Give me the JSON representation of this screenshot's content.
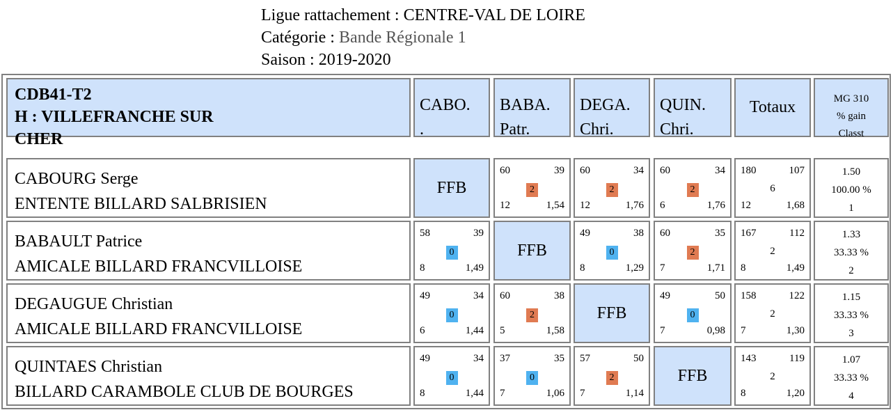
{
  "header": {
    "ligue_label": "Ligue rattachement : ",
    "ligue_value": "CENTRE-VAL DE LOIRE",
    "categorie_label": "Catégorie : ",
    "categorie_value": "Bande Régionale 1",
    "saison_label": "Saison : ",
    "saison_value": "2019-2020"
  },
  "team": {
    "line1": "CDB41-T2",
    "line2": "H : VILLEFRANCHE SUR",
    "line3": "CHER"
  },
  "columns": [
    {
      "l1": "CABO.",
      "l2": "."
    },
    {
      "l1": "BABA.",
      "l2": "Patr."
    },
    {
      "l1": "DEGA.",
      "l2": "Chri."
    },
    {
      "l1": "QUIN.",
      "l2": "Chri."
    }
  ],
  "totaux_label": "Totaux",
  "mg_header": {
    "l1": "MG 310",
    "l2": "% gain",
    "l3": "Classt"
  },
  "ffb_label": "FFB",
  "colors": {
    "header_blue": "#cfe2fb",
    "win_badge": "#e07b52",
    "loss_badge": "#4fb2f0",
    "border": "#808080"
  },
  "rows": [
    {
      "name": "CABOURG Serge",
      "club": "ENTENTE BILLARD SALBRISIEN",
      "matches": [
        null,
        {
          "pts": "60",
          "rep": "39",
          "score": "2",
          "serie": "12",
          "moy": "1,54",
          "result": "win"
        },
        {
          "pts": "60",
          "rep": "34",
          "score": "2",
          "serie": "12",
          "moy": "1,76",
          "result": "win"
        },
        {
          "pts": "60",
          "rep": "34",
          "score": "2",
          "serie": "6",
          "moy": "1,76",
          "result": "win"
        }
      ],
      "total": {
        "pts": "180",
        "rep": "107",
        "score": "6",
        "serie": "12",
        "moy": "1,68"
      },
      "stats": {
        "mg": "1.50",
        "gain": "100.00 %",
        "classt": "1"
      }
    },
    {
      "name": "BABAULT Patrice",
      "club": "AMICALE BILLARD FRANCVILLOISE",
      "matches": [
        {
          "pts": "58",
          "rep": "39",
          "score": "0",
          "serie": "8",
          "moy": "1,49",
          "result": "loss"
        },
        null,
        {
          "pts": "49",
          "rep": "38",
          "score": "0",
          "serie": "8",
          "moy": "1,29",
          "result": "loss"
        },
        {
          "pts": "60",
          "rep": "35",
          "score": "2",
          "serie": "7",
          "moy": "1,71",
          "result": "win"
        }
      ],
      "total": {
        "pts": "167",
        "rep": "112",
        "score": "2",
        "serie": "8",
        "moy": "1,49"
      },
      "stats": {
        "mg": "1.33",
        "gain": "33.33 %",
        "classt": "2"
      }
    },
    {
      "name": "DEGAUGUE Christian",
      "club": "AMICALE BILLARD FRANCVILLOISE",
      "matches": [
        {
          "pts": "49",
          "rep": "34",
          "score": "0",
          "serie": "6",
          "moy": "1,44",
          "result": "loss"
        },
        {
          "pts": "60",
          "rep": "38",
          "score": "2",
          "serie": "5",
          "moy": "1,58",
          "result": "win"
        },
        null,
        {
          "pts": "49",
          "rep": "50",
          "score": "0",
          "serie": "7",
          "moy": "0,98",
          "result": "loss"
        }
      ],
      "total": {
        "pts": "158",
        "rep": "122",
        "score": "2",
        "serie": "7",
        "moy": "1,30"
      },
      "stats": {
        "mg": "1.15",
        "gain": "33.33 %",
        "classt": "3"
      }
    },
    {
      "name": "QUINTAES Christian",
      "club": "BILLARD CARAMBOLE CLUB DE BOURGES",
      "matches": [
        {
          "pts": "49",
          "rep": "34",
          "score": "0",
          "serie": "8",
          "moy": "1,44",
          "result": "loss"
        },
        {
          "pts": "37",
          "rep": "35",
          "score": "0",
          "serie": "7",
          "moy": "1,06",
          "result": "loss"
        },
        {
          "pts": "57",
          "rep": "50",
          "score": "2",
          "serie": "7",
          "moy": "1,14",
          "result": "win"
        },
        null
      ],
      "total": {
        "pts": "143",
        "rep": "119",
        "score": "2",
        "serie": "8",
        "moy": "1,20"
      },
      "stats": {
        "mg": "1.07",
        "gain": "33.33 %",
        "classt": "4"
      }
    }
  ]
}
